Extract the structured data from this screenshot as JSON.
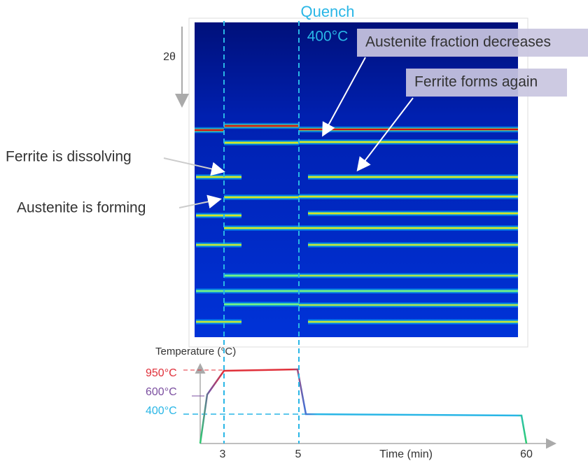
{
  "figure": {
    "quench_label": "Quench",
    "quench_temp": "400°C",
    "axis_label": "2θ",
    "annotations": [
      "Austenite fraction decreases",
      "Ferrite forms again",
      "Ferrite is dissolving",
      "Austenite is forming"
    ]
  },
  "temperature_plot": {
    "y_label": "Temperature (°C)",
    "x_label": "Time (min)",
    "temperature_labels": [
      "950°C",
      "600°C",
      "400°C"
    ],
    "time_labels": [
      "3",
      "5",
      "60"
    ]
  }
}
